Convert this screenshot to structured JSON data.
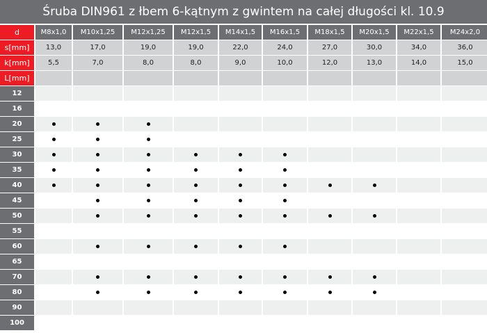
{
  "title": "Śruba DIN961 z łbem 6-kątnym z gwintem na całej długości kl. 10.9",
  "colors": {
    "label_red": "#ed1c24",
    "header_gray": "#6d6e71",
    "value_gray": "#d1d2d4",
    "stripe": "#eeefef"
  },
  "labels": {
    "d": "d",
    "s": "s[mm]",
    "k": "k[mm]",
    "L": "L[mm]"
  },
  "sizes": [
    "M8x1,0",
    "M10x1,25",
    "M12x1,25",
    "M12x1,5",
    "M14x1,5",
    "M16x1,5",
    "M18x1,5",
    "M20x1,5",
    "M22x1,5",
    "M24x2,0"
  ],
  "s_values": [
    "13,0",
    "17,0",
    "19,0",
    "19,0",
    "22,0",
    "24,0",
    "27,0",
    "30,0",
    "34,0",
    "36,0"
  ],
  "k_values": [
    "5,5",
    "7,0",
    "8,0",
    "8,0",
    "9,0",
    "10,0",
    "12,0",
    "13,0",
    "14,0",
    "15,0"
  ],
  "availability_mark": "bullet-dot",
  "lengths": [
    {
      "L": "12",
      "available": [
        0,
        0,
        0,
        0,
        0,
        0,
        0,
        0,
        0,
        0
      ]
    },
    {
      "L": "16",
      "available": [
        0,
        0,
        0,
        0,
        0,
        0,
        0,
        0,
        0,
        0
      ]
    },
    {
      "L": "20",
      "available": [
        1,
        1,
        1,
        0,
        0,
        0,
        0,
        0,
        0,
        0
      ]
    },
    {
      "L": "25",
      "available": [
        1,
        1,
        1,
        0,
        0,
        0,
        0,
        0,
        0,
        0
      ]
    },
    {
      "L": "30",
      "available": [
        1,
        1,
        1,
        1,
        1,
        1,
        0,
        0,
        0,
        0
      ]
    },
    {
      "L": "35",
      "available": [
        1,
        1,
        1,
        1,
        1,
        1,
        0,
        0,
        0,
        0
      ]
    },
    {
      "L": "40",
      "available": [
        1,
        1,
        1,
        1,
        1,
        1,
        1,
        1,
        0,
        0
      ]
    },
    {
      "L": "45",
      "available": [
        0,
        1,
        1,
        1,
        1,
        1,
        0,
        0,
        0,
        0
      ]
    },
    {
      "L": "50",
      "available": [
        0,
        1,
        1,
        1,
        1,
        1,
        1,
        1,
        0,
        0
      ]
    },
    {
      "L": "55",
      "available": [
        0,
        0,
        0,
        0,
        0,
        0,
        0,
        0,
        0,
        0
      ]
    },
    {
      "L": "60",
      "available": [
        0,
        1,
        1,
        1,
        1,
        1,
        0,
        0,
        0,
        0
      ]
    },
    {
      "L": "65",
      "available": [
        0,
        0,
        0,
        0,
        0,
        0,
        0,
        0,
        0,
        0
      ]
    },
    {
      "L": "70",
      "available": [
        0,
        1,
        1,
        1,
        1,
        1,
        1,
        1,
        0,
        0
      ]
    },
    {
      "L": "80",
      "available": [
        0,
        1,
        1,
        1,
        1,
        1,
        1,
        1,
        0,
        0
      ]
    },
    {
      "L": "90",
      "available": [
        0,
        0,
        0,
        0,
        0,
        0,
        0,
        0,
        0,
        0
      ]
    },
    {
      "L": "100",
      "available": [
        0,
        0,
        0,
        0,
        0,
        0,
        0,
        0,
        0,
        0
      ]
    }
  ]
}
